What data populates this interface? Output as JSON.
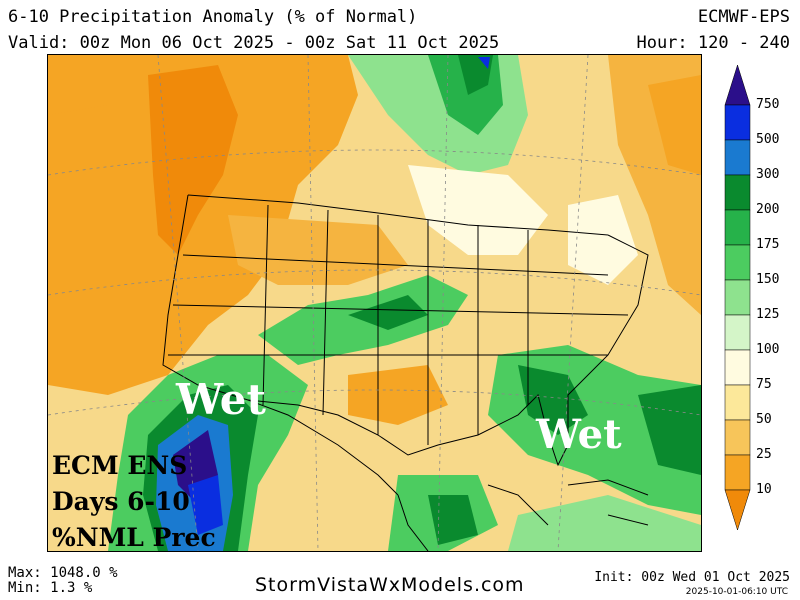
{
  "header": {
    "title": "6-10 Precipitation Anomaly (% of Normal)",
    "valid": "Valid: 00z Mon 06 Oct 2025 - 00z Sat 11 Oct 2025",
    "model": "ECMWF-EPS",
    "hours": "Hour: 120 - 240"
  },
  "annotations": {
    "wet_west": "Wet",
    "wet_east": "Wet",
    "caption_line1": "ECM ENS",
    "caption_line2": "Days 6-10",
    "caption_line3": "%NML Prec"
  },
  "legend": {
    "levels": [
      "750",
      "500",
      "300",
      "200",
      "175",
      "150",
      "125",
      "100",
      "75",
      "50",
      "25",
      "10"
    ],
    "colors": [
      "#2b0f8a",
      "#0a2ee0",
      "#1a7ad0",
      "#0a8a2e",
      "#26b24a",
      "#4ccc60",
      "#8ee28e",
      "#d4f5c8",
      "#fffbe0",
      "#fce89a",
      "#f7c55a",
      "#f5a524",
      "#f08a0a"
    ]
  },
  "footer": {
    "max": "Max: 1048.0 %",
    "min": "Min: 1.3 %",
    "site": "StormVistaWxModels.com",
    "init": "Init: 00z Wed 01 Oct 2025",
    "stamp": "2025-10-01-06:10 UTC"
  }
}
